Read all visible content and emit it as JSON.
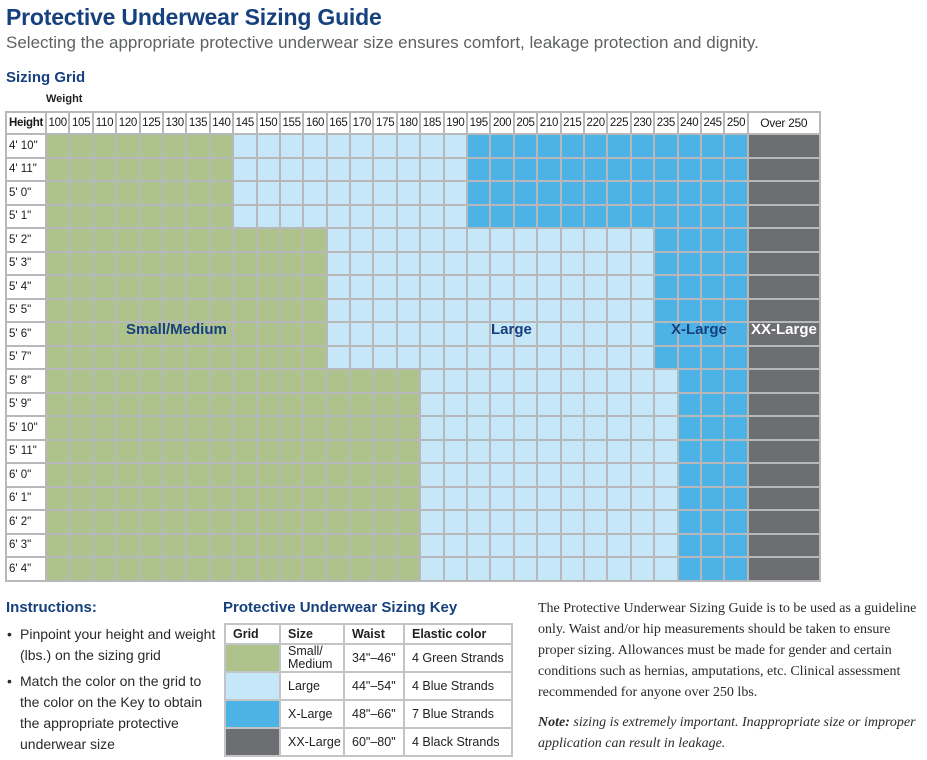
{
  "header": {
    "title": "Protective Underwear Sizing Guide",
    "subtitle": "Selecting the appropriate protective underwear size ensures comfort, leakage protection and dignity."
  },
  "grid": {
    "section_title": "Sizing Grid",
    "weight_label": "Weight",
    "height_label": "Height",
    "weights": [
      "100",
      "105",
      "110",
      "120",
      "125",
      "130",
      "135",
      "140",
      "145",
      "150",
      "155",
      "160",
      "165",
      "170",
      "175",
      "180",
      "185",
      "190",
      "195",
      "200",
      "205",
      "210",
      "215",
      "220",
      "225",
      "230",
      "235",
      "240",
      "245",
      "250"
    ],
    "over_label": "Over 250",
    "heights": [
      "4' 10\"",
      "4' 11\"",
      "5' 0\"",
      "5' 1\"",
      "5' 2\"",
      "5' 3\"",
      "5' 4\"",
      "5' 5\"",
      "5' 6\"",
      "5' 7\"",
      "5' 8\"",
      "5' 9\"",
      "5' 10\"",
      "5' 11\"",
      "6' 0\"",
      "6' 1\"",
      "6' 2\"",
      "6' 3\"",
      "6' 4\""
    ],
    "bands": [
      {
        "heights": "4' 10\" - 5' 1\"",
        "rows": 4,
        "small_medium_cols": 8,
        "large_cols": 10,
        "xlarge_cols": 12
      },
      {
        "heights": "5' 2\" - 5' 7\"",
        "rows": 6,
        "small_medium_cols": 12,
        "large_cols": 14,
        "xlarge_cols": 4
      },
      {
        "heights": "5' 8\" - 6' 4\"",
        "rows": 9,
        "small_medium_cols": 16,
        "large_cols": 11,
        "xlarge_cols": 3
      }
    ],
    "region_labels": {
      "small_medium": "Small/Medium",
      "large": "Large",
      "xlarge": "X-Large",
      "xxlarge": "XX-Large"
    },
    "colors": {
      "small_medium": "#adc38b",
      "large": "#c6e7f8",
      "xlarge": "#4db3e6",
      "xxlarge": "#6d6e71"
    }
  },
  "instructions": {
    "title": "Instructions:",
    "items": [
      "Pinpoint your height and weight (lbs.) on the sizing grid",
      "Match the color on the grid to the color on the Key to obtain the appropriate protective underwear size"
    ]
  },
  "key": {
    "title": "Protective Underwear Sizing Key",
    "headers": [
      "Grid",
      "Size",
      "Waist",
      "Elastic color"
    ],
    "rows": [
      {
        "color": "#adc38b",
        "size": "Small/ Medium",
        "waist": "34\"–46\"",
        "elastic": "4 Green Strands"
      },
      {
        "color": "#c6e7f8",
        "size": "Large",
        "waist": "44\"–54\"",
        "elastic": "4 Blue Strands"
      },
      {
        "color": "#4db3e6",
        "size": "X-Large",
        "waist": "48\"–66\"",
        "elastic": "7 Blue Strands"
      },
      {
        "color": "#6d6e71",
        "size": "XX-Large",
        "waist": "60\"–80\"",
        "elastic": "4 Black Strands"
      }
    ]
  },
  "disclaimer": {
    "paragraph": "The Protective Underwear  Sizing Guide is to be used as a guideline only.  Waist and/or hip measurements should be taken to ensure proper sizing. Allowances must be made for gender and certain conditions such as hernias, amputations, etc. Clinical assessment recommended for anyone over 250 lbs.",
    "note_label": "Note:",
    "note_text": " sizing is extremely important. Inappropriate size or improper application can result in leakage."
  }
}
